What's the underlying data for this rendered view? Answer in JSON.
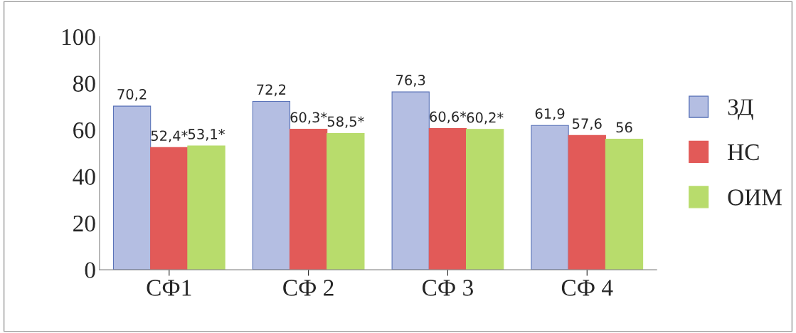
{
  "chart_data": {
    "type": "bar",
    "categories": [
      "СФ1",
      "СФ 2",
      "СФ 3",
      "СФ 4"
    ],
    "series": [
      {
        "name": "ЗД",
        "color": "#b4bee2",
        "values": [
          70.2,
          72.2,
          76.3,
          61.9
        ],
        "value_labels": [
          "70,2",
          "72,2",
          "76,3",
          "61,9"
        ]
      },
      {
        "name": "НС",
        "color": "#e25a58",
        "values": [
          52.4,
          60.3,
          60.6,
          57.6
        ],
        "value_labels": [
          "52,4*",
          "60,3*",
          "60,6*",
          "57,6"
        ]
      },
      {
        "name": "ОИМ",
        "color": "#b8dc6c",
        "values": [
          53.1,
          58.5,
          60.2,
          56
        ],
        "value_labels": [
          "53,1*",
          "58,5*",
          "60,2*",
          "56"
        ]
      }
    ],
    "ylim": [
      0,
      100
    ],
    "yticks": [
      0,
      20,
      40,
      60,
      80,
      100
    ],
    "grid": false,
    "legend": "right"
  }
}
